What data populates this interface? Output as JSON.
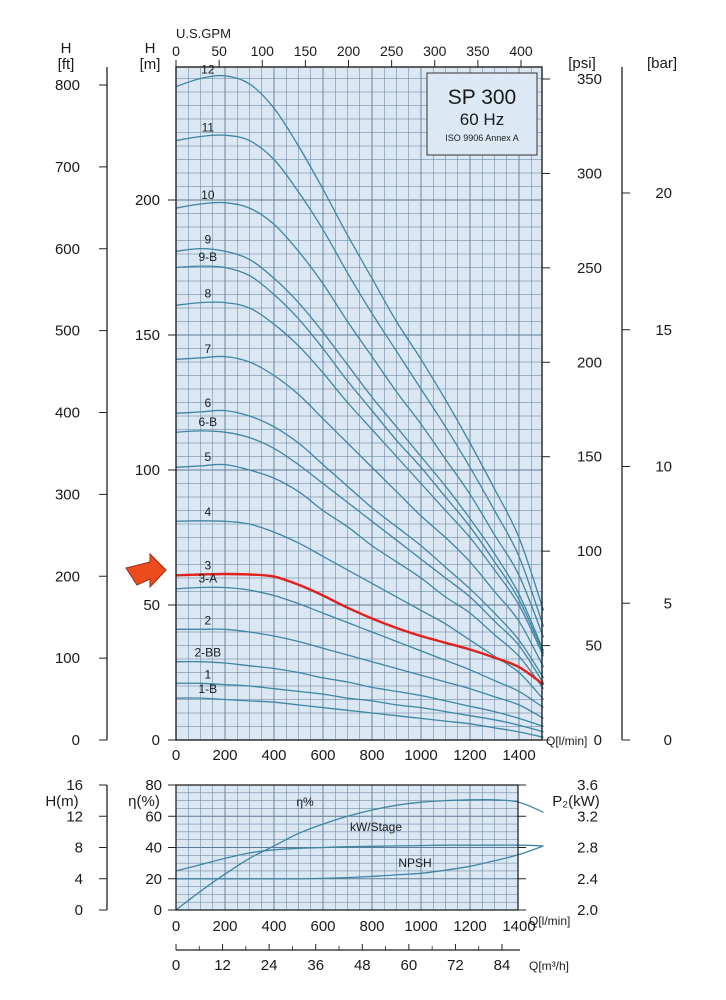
{
  "colors": {
    "plot_bg": "#dbe7f3",
    "grid": "#5f7a95",
    "curve": "#3e86a3",
    "highlight": "#e1201e",
    "arrow": "#ee4b1c",
    "title_box": "#dce8f4"
  },
  "title_box": {
    "line1": "SP 300",
    "line2": "60 Hz",
    "line3": "ISO 9906 Annex A"
  },
  "axis_labels": {
    "top_gpm": "U.S.GPM",
    "h_ft_line1": "H",
    "h_ft_line2": "[ft]",
    "h_m_line1": "H",
    "h_m_line2": "[m]",
    "psi": "[psi]",
    "bar": "[bar]",
    "q_main": "Q[l/min]",
    "h_m_small": "H(m)",
    "eta": "η(%)",
    "p2": "P₂(kW)",
    "q_small": "Q[l/min]",
    "q_m3h": "Q[m³/h]"
  },
  "chart_data": [
    {
      "type": "line",
      "title": "SP 300 60 Hz",
      "subtitle": "ISO 9906 Annex A",
      "xlabel": "Q[l/min]",
      "ylabel": "H [m]",
      "xlim": [
        0,
        1500
      ],
      "ylim": [
        0,
        250
      ],
      "x_ticks": [
        0,
        200,
        400,
        600,
        800,
        1000,
        1200,
        1400
      ],
      "y_ticks": [
        0,
        50,
        100,
        150,
        200
      ],
      "secondary_axes": {
        "top_usgpm_ticks": [
          0,
          50,
          100,
          150,
          200,
          250,
          300,
          350,
          400
        ],
        "left_ft_ticks": [
          0,
          100,
          200,
          300,
          400,
          500,
          600,
          700,
          800
        ],
        "right_psi_ticks": [
          0,
          50,
          100,
          150,
          200,
          250,
          300,
          350
        ],
        "right_bar_ticks": [
          0,
          5,
          10,
          15,
          20
        ]
      },
      "x": [
        0,
        100,
        200,
        300,
        400,
        500,
        600,
        700,
        800,
        900,
        1000,
        1100,
        1200,
        1300,
        1400,
        1500
      ],
      "highlighted_series": "3",
      "series": [
        {
          "name": "12",
          "values": [
            242,
            245,
            246,
            243,
            234,
            220,
            204,
            187,
            171,
            155,
            141,
            126,
            110,
            93,
            75,
            48
          ]
        },
        {
          "name": "11",
          "values": [
            222,
            223.5,
            224,
            222,
            215,
            203,
            189,
            173,
            158,
            144,
            130,
            116,
            101,
            85,
            68,
            42
          ]
        },
        {
          "name": "10",
          "values": [
            197,
            198.5,
            199,
            197,
            191,
            181,
            169,
            155,
            142,
            129,
            117,
            104,
            91,
            76,
            61,
            38
          ]
        },
        {
          "name": "9",
          "values": [
            181,
            182,
            181,
            178,
            171,
            162,
            151,
            139,
            127,
            116,
            105,
            94,
            82,
            69,
            54,
            33
          ]
        },
        {
          "name": "9-B",
          "values": [
            175,
            175.5,
            175,
            172,
            165,
            156,
            145,
            133,
            122,
            111,
            101,
            90,
            79,
            66,
            52,
            32
          ]
        },
        {
          "name": "8",
          "values": [
            161,
            162,
            162,
            160,
            154,
            146,
            136,
            125,
            115,
            105,
            95,
            85,
            75,
            63,
            50,
            31
          ]
        },
        {
          "name": "7",
          "values": [
            141,
            141.5,
            142,
            140,
            135,
            128,
            119,
            110,
            101,
            92,
            83,
            75,
            66,
            55,
            44,
            27
          ]
        },
        {
          "name": "6",
          "values": [
            121,
            121.5,
            122,
            120,
            116,
            110,
            102,
            94,
            86,
            79,
            72,
            64,
            56,
            47,
            37,
            23
          ]
        },
        {
          "name": "6-B",
          "values": [
            114,
            114.5,
            114,
            112,
            108,
            102,
            95,
            88,
            81,
            74,
            67,
            60,
            53,
            44,
            35,
            21
          ]
        },
        {
          "name": "5",
          "values": [
            101,
            101.5,
            102,
            100,
            97,
            92,
            85,
            79,
            72,
            66,
            60,
            53,
            47,
            39,
            31,
            19
          ]
        },
        {
          "name": "4",
          "values": [
            81,
            81.2,
            81,
            80,
            77,
            73,
            68,
            63,
            58,
            53,
            48,
            43,
            37,
            31,
            25,
            15
          ]
        },
        {
          "name": "3",
          "values": [
            61,
            61.3,
            61.5,
            61.3,
            60.5,
            57.5,
            53.5,
            49,
            45,
            41.5,
            38.5,
            36,
            33.5,
            30.5,
            27,
            20.5
          ]
        },
        {
          "name": "3-A",
          "values": [
            56,
            56.5,
            56.5,
            55.5,
            53.5,
            50.5,
            47,
            43.5,
            40,
            36.5,
            33,
            29.5,
            26,
            22,
            18,
            12
          ]
        },
        {
          "name": "2",
          "values": [
            41,
            41,
            41,
            40,
            38.5,
            36.5,
            34,
            31.5,
            29,
            26.5,
            24,
            21.5,
            19,
            16,
            13,
            8
          ]
        },
        {
          "name": "2-BB",
          "values": [
            29,
            29,
            28.5,
            27.5,
            26.5,
            25,
            23,
            21.5,
            19.5,
            18,
            16.5,
            14.5,
            12.5,
            10.5,
            8,
            5
          ]
        },
        {
          "name": "1",
          "values": [
            21,
            21,
            20.5,
            20,
            19,
            18,
            17,
            15.5,
            14.5,
            13,
            12,
            10.5,
            9,
            7.5,
            5.5,
            3
          ]
        },
        {
          "name": "1-B",
          "values": [
            15.5,
            15.5,
            15,
            14.5,
            14,
            13,
            12,
            11,
            10,
            9,
            8,
            7,
            6,
            4.5,
            3,
            1
          ]
        }
      ]
    },
    {
      "type": "line",
      "xlabel": "Q[l/min]",
      "x_ticks": [
        0,
        200,
        400,
        600,
        800,
        1000,
        1200,
        1400
      ],
      "xlim": [
        0,
        1500
      ],
      "eta_axis": {
        "label": "η(%)",
        "ticks": [
          0,
          20,
          40,
          60,
          80
        ],
        "range": [
          0,
          80
        ]
      },
      "h_axis": {
        "label": "H(m)",
        "ticks": [
          0,
          4,
          8,
          12,
          16
        ],
        "range": [
          0,
          16
        ]
      },
      "p2_axis": {
        "label": "P₂(kW)",
        "ticks": [
          2.0,
          2.4,
          2.8,
          3.2,
          3.6
        ],
        "range": [
          2.0,
          3.6
        ]
      },
      "x": [
        0,
        100,
        200,
        300,
        400,
        500,
        600,
        700,
        800,
        900,
        1000,
        1100,
        1200,
        1300,
        1400,
        1500
      ],
      "series": [
        {
          "name": "η%",
          "axis": "eta",
          "values": [
            0,
            12,
            23,
            33,
            41,
            49,
            55,
            60,
            64,
            67,
            69,
            70,
            70.5,
            70.5,
            69,
            62.5
          ]
        },
        {
          "name": "kW/Stage",
          "axis": "p2",
          "values": [
            2.5,
            2.58,
            2.66,
            2.73,
            2.77,
            2.79,
            2.8,
            2.81,
            2.815,
            2.82,
            2.825,
            2.83,
            2.83,
            2.83,
            2.83,
            2.82
          ]
        },
        {
          "name": "NPSH",
          "axis": "h",
          "values": [
            4,
            4,
            4,
            4,
            4,
            4,
            4.05,
            4.15,
            4.3,
            4.5,
            4.7,
            5.1,
            5.6,
            6.3,
            7.1,
            8.2
          ]
        }
      ]
    },
    {
      "type": "axis",
      "xlabel": "Q[m³/h]",
      "x_ticks": [
        0,
        12,
        24,
        36,
        48,
        60,
        72,
        84
      ],
      "xlim": [
        0,
        90
      ]
    }
  ]
}
